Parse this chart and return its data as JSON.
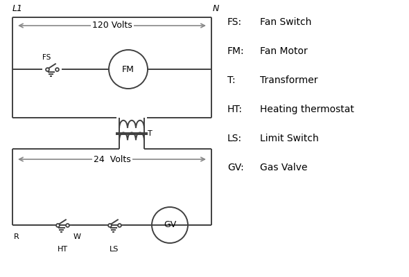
{
  "bg_color": "#ffffff",
  "line_color": "#404040",
  "arrow_color": "#888888",
  "text_color": "#000000",
  "legend_items": [
    [
      "FS:",
      "Fan Switch"
    ],
    [
      "FM:",
      "Fan Motor"
    ],
    [
      "T:",
      "Transformer"
    ],
    [
      "HT:",
      "Heating thermostat"
    ],
    [
      "LS:",
      "Limit Switch"
    ],
    [
      "GV:",
      "Gas Valve"
    ]
  ],
  "L1_label": "L1",
  "N_label": "N",
  "volts120_label": "120 Volts",
  "volts24_label": "24  Volts",
  "T_label": "T",
  "R_label": "R",
  "W_label": "W",
  "HT_label": "HT",
  "LS_label": "LS",
  "FS_label": "FS",
  "FM_label": "FM",
  "GV_label": "GV"
}
